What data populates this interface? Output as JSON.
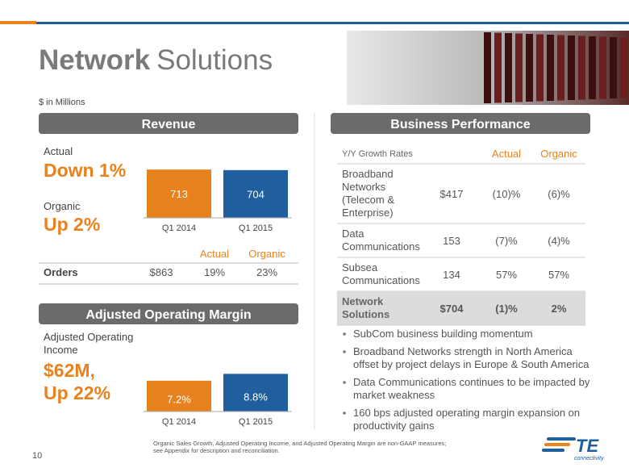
{
  "header": {
    "title_bold": "Network",
    "title_rest": "Solutions",
    "units": "$ in Millions"
  },
  "revenue": {
    "heading": "Revenue",
    "actual_label": "Actual",
    "actual_value": "Down 1%",
    "organic_label": "Organic",
    "organic_value": "Up 2%",
    "chart": {
      "type": "bar",
      "categories": [
        "Q1 2014",
        "Q1 2015"
      ],
      "values": [
        713,
        704
      ],
      "colors": [
        "#e8821e",
        "#1f5f9e"
      ]
    },
    "orders": {
      "columns": [
        "Actual",
        "Organic"
      ],
      "label": "Orders",
      "cells": [
        "$863",
        "19%",
        "23%"
      ]
    }
  },
  "margin": {
    "heading": "Adjusted Operating Margin",
    "label_lines": [
      "Adjusted Operating",
      "Income"
    ],
    "value_lines": [
      "$62M,",
      "Up 22%"
    ],
    "chart": {
      "type": "bar",
      "categories": [
        "Q1 2014",
        "Q1 2015"
      ],
      "values": [
        7.2,
        8.8
      ],
      "value_labels": [
        "7.2%",
        "8.8%"
      ],
      "colors": [
        "#e8821e",
        "#1f5f9e"
      ]
    }
  },
  "business": {
    "heading": "Business Performance",
    "table": {
      "header": [
        "Y/Y Growth Rates",
        "Actual",
        "Organic"
      ],
      "rows": [
        {
          "label_lines": [
            "Broadband",
            "Networks",
            "(Telecom &",
            "Enterprise)"
          ],
          "cells": [
            "$417",
            "(10)%",
            "(6)%"
          ]
        },
        {
          "label_lines": [
            "Data",
            "Communications"
          ],
          "cells": [
            "153",
            "(7)%",
            "(4)%"
          ]
        },
        {
          "label_lines": [
            "Subsea",
            "Communications"
          ],
          "cells": [
            "134",
            "57%",
            "57%"
          ]
        },
        {
          "label_lines": [
            "Network",
            "Solutions"
          ],
          "cells": [
            "$704",
            "(1)%",
            "2%"
          ]
        }
      ]
    },
    "bullets": [
      [
        "SubCom business building momentum"
      ],
      [
        "Broadband Networks strength in North America",
        "offset by project delays in Europe & South America"
      ],
      [
        "Data Communications continues to be impacted by",
        "market weakness"
      ],
      [
        "160 bps adjusted operating margin expansion on",
        "productivity gains"
      ]
    ]
  },
  "footer": {
    "note_lines": [
      "Organic Sales Growth, Adjusted Operating Income, and Adjusted Operating Margin are non-GAAP measures;",
      "see Appendix for description and reconciliation."
    ],
    "page": "10",
    "logo": "TE",
    "logo_sub": "connectivity"
  }
}
